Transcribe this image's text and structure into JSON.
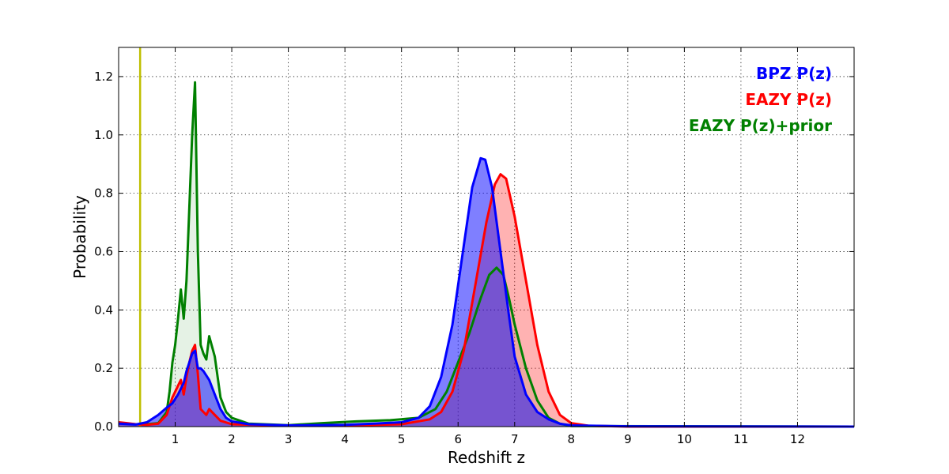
{
  "chart_data": {
    "type": "area",
    "title": "",
    "xlabel": "Redshift z",
    "ylabel": "Probability",
    "xlim": [
      0,
      13
    ],
    "ylim": [
      0,
      1.3
    ],
    "x_ticks": [
      1,
      2,
      3,
      4,
      5,
      6,
      7,
      8,
      9,
      10,
      11,
      12
    ],
    "y_ticks": [
      0.0,
      0.2,
      0.4,
      0.6,
      0.8,
      1.0,
      1.2
    ],
    "grid": true,
    "legend_position": "top-right",
    "vline": {
      "x": 0.38,
      "color": "#bfbf00"
    },
    "series": [
      {
        "name": "EAZY P(z)+prior",
        "color": "#008000",
        "fill": "#008000",
        "fill_opacity": 0.1,
        "points": [
          [
            0,
            0.012
          ],
          [
            0.3,
            0.008
          ],
          [
            0.5,
            0.008
          ],
          [
            0.7,
            0.012
          ],
          [
            0.85,
            0.05
          ],
          [
            0.9,
            0.12
          ],
          [
            0.95,
            0.22
          ],
          [
            1.0,
            0.28
          ],
          [
            1.05,
            0.37
          ],
          [
            1.1,
            0.47
          ],
          [
            1.15,
            0.37
          ],
          [
            1.2,
            0.5
          ],
          [
            1.25,
            0.75
          ],
          [
            1.3,
            1.0
          ],
          [
            1.35,
            1.18
          ],
          [
            1.4,
            0.6
          ],
          [
            1.45,
            0.28
          ],
          [
            1.5,
            0.25
          ],
          [
            1.55,
            0.23
          ],
          [
            1.6,
            0.31
          ],
          [
            1.7,
            0.24
          ],
          [
            1.8,
            0.1
          ],
          [
            1.9,
            0.05
          ],
          [
            2.0,
            0.03
          ],
          [
            2.3,
            0.01
          ],
          [
            3.0,
            0.005
          ],
          [
            3.6,
            0.012
          ],
          [
            4.2,
            0.018
          ],
          [
            4.8,
            0.022
          ],
          [
            5.3,
            0.03
          ],
          [
            5.6,
            0.06
          ],
          [
            5.8,
            0.12
          ],
          [
            6.0,
            0.22
          ],
          [
            6.2,
            0.32
          ],
          [
            6.4,
            0.44
          ],
          [
            6.55,
            0.52
          ],
          [
            6.68,
            0.545
          ],
          [
            6.8,
            0.52
          ],
          [
            6.9,
            0.44
          ],
          [
            7.0,
            0.35
          ],
          [
            7.2,
            0.2
          ],
          [
            7.4,
            0.09
          ],
          [
            7.6,
            0.03
          ],
          [
            7.8,
            0.01
          ],
          [
            8.0,
            0.002
          ],
          [
            13,
            0
          ]
        ]
      },
      {
        "name": "EAZY P(z)",
        "color": "#ff0000",
        "fill": "#ff0000",
        "fill_opacity": 0.3,
        "points": [
          [
            0,
            0.015
          ],
          [
            0.15,
            0.012
          ],
          [
            0.3,
            0.008
          ],
          [
            0.5,
            0.006
          ],
          [
            0.7,
            0.01
          ],
          [
            0.85,
            0.04
          ],
          [
            0.95,
            0.1
          ],
          [
            1.05,
            0.14
          ],
          [
            1.1,
            0.16
          ],
          [
            1.15,
            0.11
          ],
          [
            1.2,
            0.17
          ],
          [
            1.25,
            0.22
          ],
          [
            1.3,
            0.26
          ],
          [
            1.35,
            0.28
          ],
          [
            1.4,
            0.18
          ],
          [
            1.45,
            0.06
          ],
          [
            1.5,
            0.05
          ],
          [
            1.55,
            0.04
          ],
          [
            1.6,
            0.06
          ],
          [
            1.7,
            0.04
          ],
          [
            1.8,
            0.02
          ],
          [
            2.0,
            0.008
          ],
          [
            3.0,
            0.003
          ],
          [
            4.0,
            0.003
          ],
          [
            5.0,
            0.008
          ],
          [
            5.5,
            0.025
          ],
          [
            5.7,
            0.05
          ],
          [
            5.9,
            0.12
          ],
          [
            6.1,
            0.26
          ],
          [
            6.3,
            0.48
          ],
          [
            6.5,
            0.7
          ],
          [
            6.65,
            0.83
          ],
          [
            6.75,
            0.865
          ],
          [
            6.85,
            0.85
          ],
          [
            7.0,
            0.72
          ],
          [
            7.2,
            0.5
          ],
          [
            7.4,
            0.28
          ],
          [
            7.6,
            0.12
          ],
          [
            7.8,
            0.04
          ],
          [
            8.0,
            0.012
          ],
          [
            8.3,
            0.003
          ],
          [
            9,
            0
          ],
          [
            13,
            0
          ]
        ]
      },
      {
        "name": "BPZ P(z)",
        "color": "#0000ff",
        "fill": "#0000ff",
        "fill_opacity": 0.5,
        "points": [
          [
            0,
            0.01
          ],
          [
            0.3,
            0.007
          ],
          [
            0.5,
            0.015
          ],
          [
            0.7,
            0.04
          ],
          [
            0.85,
            0.065
          ],
          [
            0.95,
            0.08
          ],
          [
            1.05,
            0.11
          ],
          [
            1.15,
            0.15
          ],
          [
            1.2,
            0.19
          ],
          [
            1.25,
            0.22
          ],
          [
            1.3,
            0.25
          ],
          [
            1.35,
            0.26
          ],
          [
            1.4,
            0.2
          ],
          [
            1.45,
            0.2
          ],
          [
            1.5,
            0.19
          ],
          [
            1.6,
            0.16
          ],
          [
            1.7,
            0.11
          ],
          [
            1.8,
            0.06
          ],
          [
            1.9,
            0.03
          ],
          [
            2.0,
            0.018
          ],
          [
            2.3,
            0.008
          ],
          [
            3.0,
            0.004
          ],
          [
            4.0,
            0.006
          ],
          [
            4.5,
            0.01
          ],
          [
            5.0,
            0.015
          ],
          [
            5.3,
            0.03
          ],
          [
            5.5,
            0.07
          ],
          [
            5.7,
            0.17
          ],
          [
            5.9,
            0.35
          ],
          [
            6.1,
            0.62
          ],
          [
            6.25,
            0.82
          ],
          [
            6.4,
            0.92
          ],
          [
            6.48,
            0.915
          ],
          [
            6.6,
            0.82
          ],
          [
            6.75,
            0.6
          ],
          [
            6.9,
            0.38
          ],
          [
            7.0,
            0.24
          ],
          [
            7.2,
            0.11
          ],
          [
            7.4,
            0.05
          ],
          [
            7.6,
            0.025
          ],
          [
            7.8,
            0.01
          ],
          [
            8.0,
            0.004
          ],
          [
            9,
            0.001
          ],
          [
            13,
            0
          ]
        ]
      }
    ]
  }
}
